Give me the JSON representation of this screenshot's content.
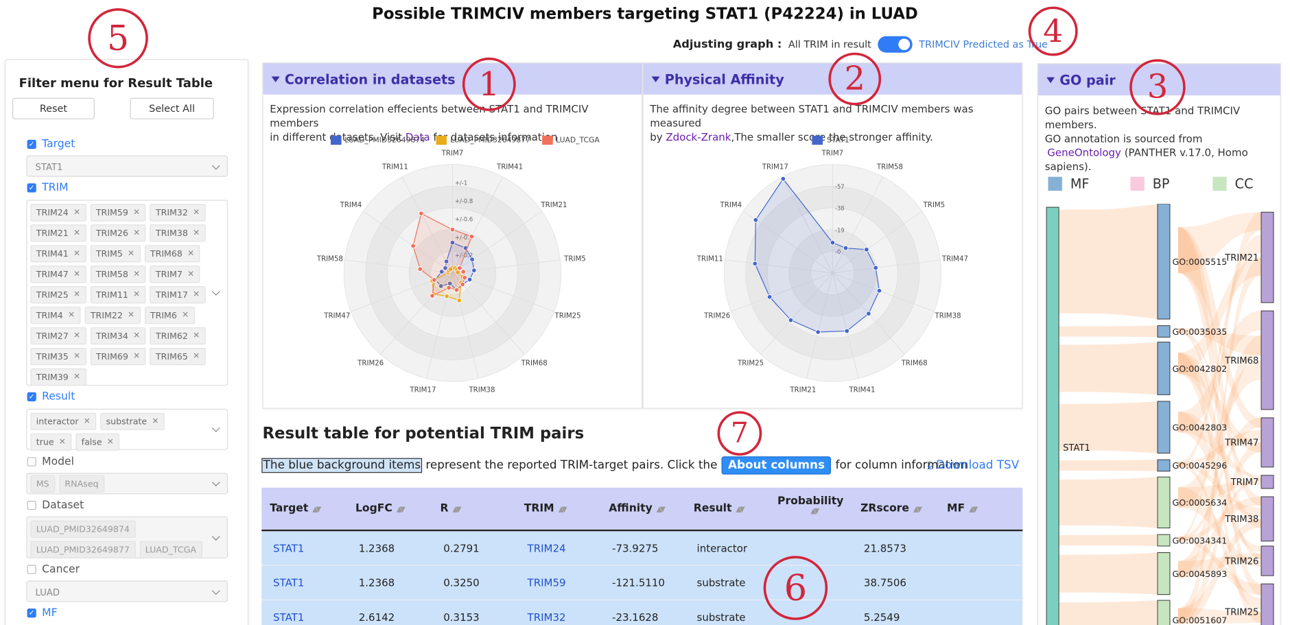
{
  "title": "Possible TRIMCIV members targeting STAT1 (P42224) in LUAD",
  "adjust": {
    "label": "Adjusting graph :",
    "left": "All TRIM in result",
    "right": "TRIMCIV Predicted as True",
    "on": true
  },
  "annotations": [
    "1",
    "2",
    "3",
    "4",
    "5",
    "6",
    "7"
  ],
  "filter": {
    "title": "Filter menu for Result Table",
    "reset": "Reset",
    "select_all": "Select All",
    "target": {
      "label": "Target",
      "checked": true,
      "value": "STAT1"
    },
    "trim": {
      "label": "TRIM",
      "checked": true,
      "tags": [
        "TRIM24",
        "TRIM59",
        "TRIM32",
        "TRIM21",
        "TRIM26",
        "TRIM38",
        "TRIM41",
        "TRIM5",
        "TRIM68",
        "TRIM47",
        "TRIM58",
        "TRIM7",
        "TRIM25",
        "TRIM11",
        "TRIM17",
        "TRIM4",
        "TRIM22",
        "TRIM6",
        "TRIM27",
        "TRIM34",
        "TRIM62",
        "TRIM35",
        "TRIM69",
        "TRIM65",
        "TRIM39"
      ]
    },
    "result": {
      "label": "Result",
      "checked": true,
      "tags": [
        "interactor",
        "substrate",
        "true",
        "false"
      ]
    },
    "model": {
      "label": "Model",
      "checked": false,
      "tags": [
        "MS",
        "RNAseq"
      ]
    },
    "dataset": {
      "label": "Dataset",
      "checked": false,
      "tags": [
        "LUAD_PMID32649874",
        "LUAD_PMID32649877",
        "LUAD_TCGA"
      ]
    },
    "cancer": {
      "label": "Cancer",
      "checked": false,
      "value": "LUAD"
    },
    "mf": {
      "label": "MF",
      "checked": true
    }
  },
  "correlation": {
    "title": "Correlation in datasets",
    "desc1": "Expression correlation effecients between STAT1 and TRIMCIV members",
    "desc2a": "in different datasets. Visit",
    "desc2link": "Data",
    "desc2b": "for datasets information",
    "colors": [
      "#4466cc",
      "#e8ad1a",
      "#f0705a"
    ]
  },
  "affinity": {
    "title": "Physical Affinity",
    "desc1": "The affinity degree between STAT1 and TRIMCIV members was measured",
    "desc2a": "by",
    "desc2link": "Zdock-Zrank",
    "desc2b": ",The smaller score the stronger affinity.",
    "legend": "STAT1",
    "color": "#4466cc"
  },
  "chart_data": [
    {
      "type": "radar",
      "categories": [
        "TRIM7",
        "TRIM41",
        "TRIM21",
        "TRIM5",
        "TRIM25",
        "TRIM68",
        "TRIM38",
        "TRIM17",
        "TRIM26",
        "TRIM47",
        "TRIM58",
        "TRIM4",
        "TRIM11"
      ],
      "radial_ticks": [
        "+/-1",
        "+/-0.8",
        "+/-0.6",
        "+/-0.4",
        "+/-0.2"
      ],
      "series": [
        {
          "name": "LUAD_PMID32649874",
          "values": [
            0.28,
            0.26,
            0.22,
            0.2,
            0.17,
            0.14,
            0.16,
            0.1,
            0.16,
            0.17,
            0.1,
            0.08,
            0.12
          ]
        },
        {
          "name": "LUAD_PMID32649877",
          "values": [
            0.05,
            0.05,
            0.05,
            0.05,
            0.1,
            0.12,
            0.26,
            0.22,
            0.26,
            0.2,
            0.04,
            0.04,
            0.04
          ]
        },
        {
          "name": "LUAD_TCGA",
          "values": [
            0.4,
            0.38,
            0.08,
            0.1,
            0.12,
            0.14,
            0.16,
            0.14,
            0.28,
            0.18,
            0.3,
            0.44,
            0.62
          ]
        }
      ]
    },
    {
      "type": "radar",
      "categories": [
        "TRIM7",
        "TRIM58",
        "TRIM5",
        "TRIM47",
        "TRIM38",
        "TRIM68",
        "TRIM41",
        "TRIM21",
        "TRIM25",
        "TRIM26",
        "TRIM11",
        "TRIM4",
        "TRIM17"
      ],
      "radial_ticks": [
        "-57",
        "-38",
        "-19",
        "-0"
      ],
      "series": [
        {
          "name": "STAT1",
          "values": [
            0.28,
            0.26,
            0.38,
            0.4,
            0.46,
            0.5,
            0.55,
            0.56,
            0.58,
            0.62,
            0.72,
            0.86,
            0.98
          ]
        }
      ]
    }
  ],
  "go": {
    "title": "GO pair",
    "desc1": "GO pairs between STAT1 and TRIMCIV",
    "desc2": "members.",
    "desc3": "GO annotation is sourced from",
    "desc4link": "GeneOntology",
    "desc4": "(PANTHER v.17.0, Homo",
    "desc5": "sapiens).",
    "legend": [
      {
        "label": "MF",
        "color": "#86b0d6"
      },
      {
        "label": "BP",
        "color": "#f9c9dc"
      },
      {
        "label": "CC",
        "color": "#c6e5c0"
      }
    ],
    "source": "STAT1",
    "terms": [
      "GO:0005515",
      "GO:0035035",
      "GO:0042802",
      "GO:0042803",
      "GO:0045296",
      "GO:0005634",
      "GO:0034341",
      "GO:0045893",
      "GO:0051607"
    ],
    "trims": [
      "TRIM21",
      "TRIM68",
      "TRIM47",
      "TRIM7",
      "TRIM38",
      "TRIM26",
      "TRIM25"
    ]
  },
  "result_table": {
    "title": "Result table for potential TRIM pairs",
    "desc_hl": "The blue background items",
    "desc_mid": "represent the reported TRIM-target pairs. Click the",
    "about": "About columns",
    "desc_end": "for column information",
    "download": "Download TSV",
    "columns": [
      "Target",
      "LogFC",
      "R",
      "TRIM",
      "Affinity",
      "Result",
      "Probability",
      "ZRscore",
      "MF"
    ],
    "rows": [
      [
        "STAT1",
        "1.2368",
        "0.2791",
        "TRIM24",
        "-73.9275",
        "interactor",
        "",
        "21.8573",
        ""
      ],
      [
        "STAT1",
        "1.2368",
        "0.3250",
        "TRIM59",
        "-121.5110",
        "substrate",
        "",
        "38.7506",
        ""
      ],
      [
        "STAT1",
        "2.6142",
        "0.3153",
        "TRIM32",
        "-23.1628",
        "substrate",
        "",
        "5.2549",
        ""
      ]
    ]
  }
}
